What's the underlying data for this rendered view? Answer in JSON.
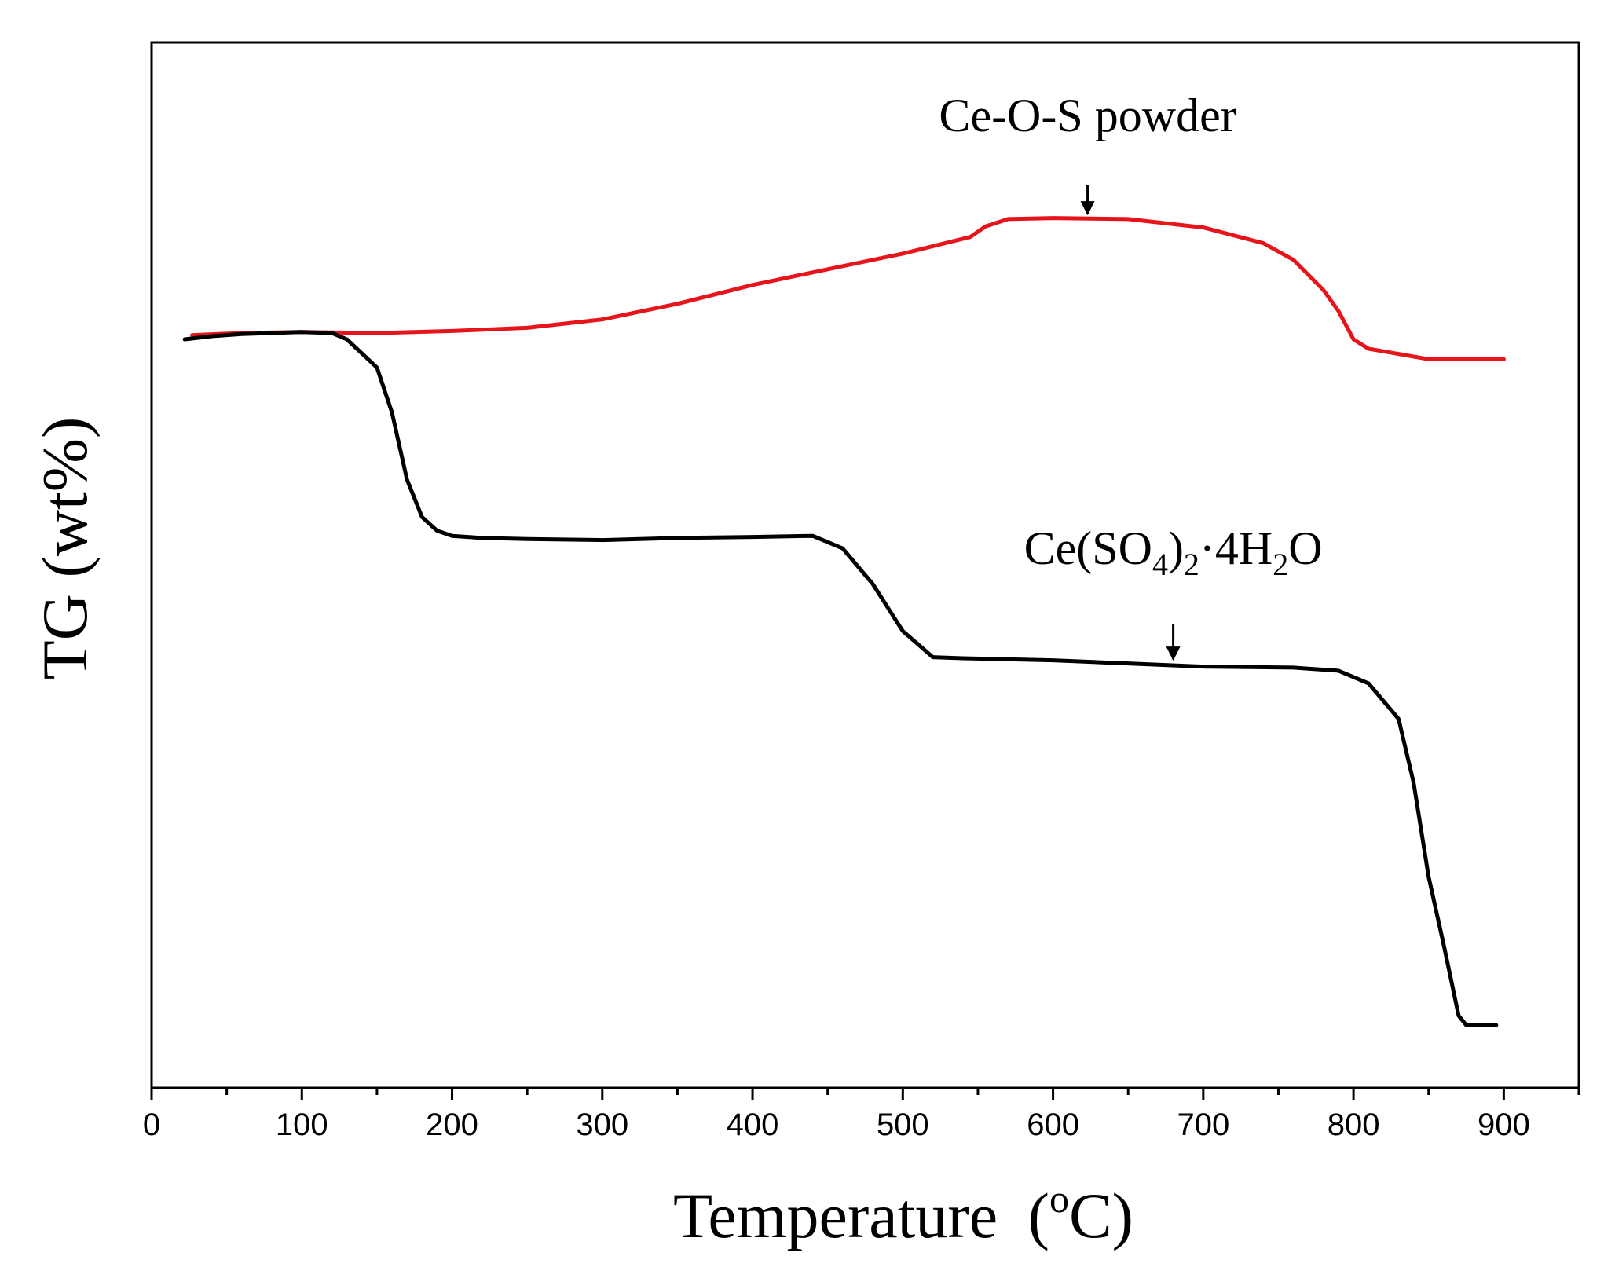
{
  "chart_data": {
    "type": "line",
    "xlabel": "Temperature",
    "xlabel_unit_sup": "o",
    "xlabel_unit_tail": "C",
    "ylabel": "TG (wt%)",
    "xlim": [
      0,
      950
    ],
    "ylim": [
      0,
      100
    ],
    "xticks": [
      0,
      100,
      200,
      300,
      400,
      500,
      600,
      700,
      800,
      900
    ],
    "x_minor_step": 50,
    "y_ticks_shown": false,
    "grid": false,
    "legend": "none",
    "series": [
      {
        "name": "Ce-O-S powder",
        "color": "#e8141b",
        "x": [
          27,
          60,
          100,
          150,
          200,
          250,
          300,
          350,
          400,
          450,
          500,
          545,
          555,
          570,
          600,
          650,
          700,
          740,
          760,
          780,
          790,
          800,
          810,
          850,
          900
        ],
        "y": [
          72.0,
          72.2,
          72.3,
          72.2,
          72.4,
          72.7,
          73.5,
          75.0,
          76.8,
          78.3,
          79.8,
          81.4,
          82.4,
          83.1,
          83.2,
          83.1,
          82.3,
          80.8,
          79.2,
          76.3,
          74.3,
          71.6,
          70.7,
          69.7,
          69.7
        ]
      },
      {
        "name": "Ce(SO4)2·4H2O",
        "color": "#000000",
        "x": [
          22,
          40,
          60,
          80,
          100,
          120,
          130,
          150,
          160,
          170,
          180,
          190,
          200,
          220,
          250,
          300,
          350,
          400,
          440,
          460,
          480,
          500,
          520,
          540,
          600,
          650,
          700,
          760,
          790,
          810,
          830,
          840,
          850,
          860,
          870,
          875,
          895
        ],
        "y": [
          71.6,
          71.9,
          72.1,
          72.2,
          72.3,
          72.2,
          71.6,
          68.9,
          64.6,
          58.2,
          54.6,
          53.3,
          52.8,
          52.6,
          52.5,
          52.4,
          52.6,
          52.7,
          52.8,
          51.6,
          48.2,
          43.7,
          41.2,
          41.1,
          40.9,
          40.6,
          40.3,
          40.2,
          39.9,
          38.7,
          35.3,
          29.2,
          20.2,
          13.7,
          6.9,
          6.0,
          6.0
        ]
      }
    ],
    "annotations": [
      {
        "text_main": "Ce-O-S powder",
        "series": 0,
        "x": 623,
        "label_y": 91.5,
        "arrow_from_y": 86.4,
        "arrow_to_y": 83.6
      },
      {
        "text_main": "Ce(SO",
        "sub1": "4",
        "text_mid": ")",
        "sub2": "2",
        "text_mid2": "·4H",
        "sub3": "2",
        "text_end": "O",
        "series": 1,
        "x": 680,
        "label_y": 50.1,
        "arrow_from_y": 44.4,
        "arrow_to_y": 41.0
      }
    ]
  }
}
